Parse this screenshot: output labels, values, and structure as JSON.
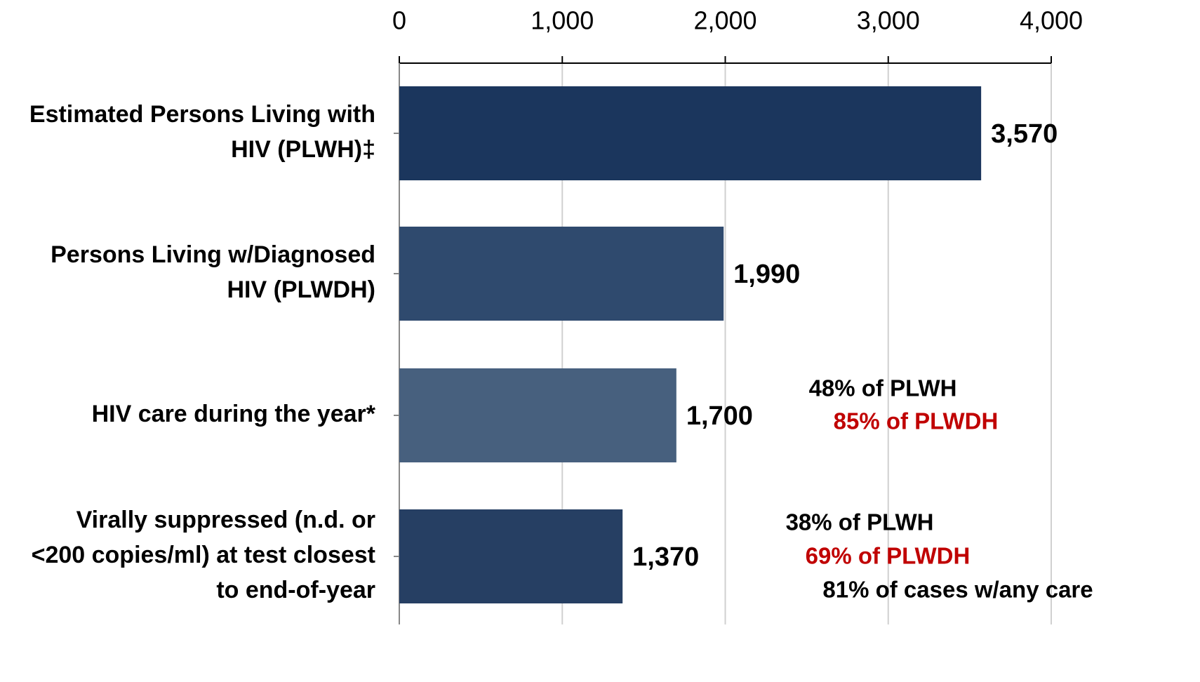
{
  "chart_data": {
    "type": "bar",
    "orientation": "horizontal",
    "categories": [
      [
        "Estimated Persons Living with",
        "HIV (PLWH)‡"
      ],
      [
        "Persons Living w/Diagnosed",
        "HIV (PLWDH)"
      ],
      [
        "HIV care during the year*"
      ],
      [
        "Virally suppressed (n.d. or",
        "<200 copies/ml) at test closest",
        "to end-of-year"
      ]
    ],
    "values": [
      3570,
      1990,
      1700,
      1370
    ],
    "value_labels": [
      "3,570",
      "1,990",
      "1,700",
      "1,370"
    ],
    "colors": [
      "#1b365d",
      "#2f4a6e",
      "#47607e",
      "#263f63"
    ],
    "xlim": [
      0,
      4000
    ],
    "xticks": [
      0,
      {
        "value": 1000,
        "label": "1,000"
      },
      {
        "value": 2000,
        "label": "2,000"
      },
      {
        "value": 3000,
        "label": "3,000"
      },
      {
        "value": 4000,
        "label": "4,000"
      }
    ],
    "grid": true,
    "annotations": [
      {
        "text": "48% of PLWH",
        "color": "#000000"
      },
      {
        "text": "85% of PLWDH",
        "color": "#c00000"
      },
      {
        "text": "38% of PLWH",
        "color": "#000000"
      },
      {
        "text": "69% of PLWDH",
        "color": "#c00000"
      },
      {
        "text": "81% of cases w/any care",
        "color": "#000000"
      }
    ]
  }
}
